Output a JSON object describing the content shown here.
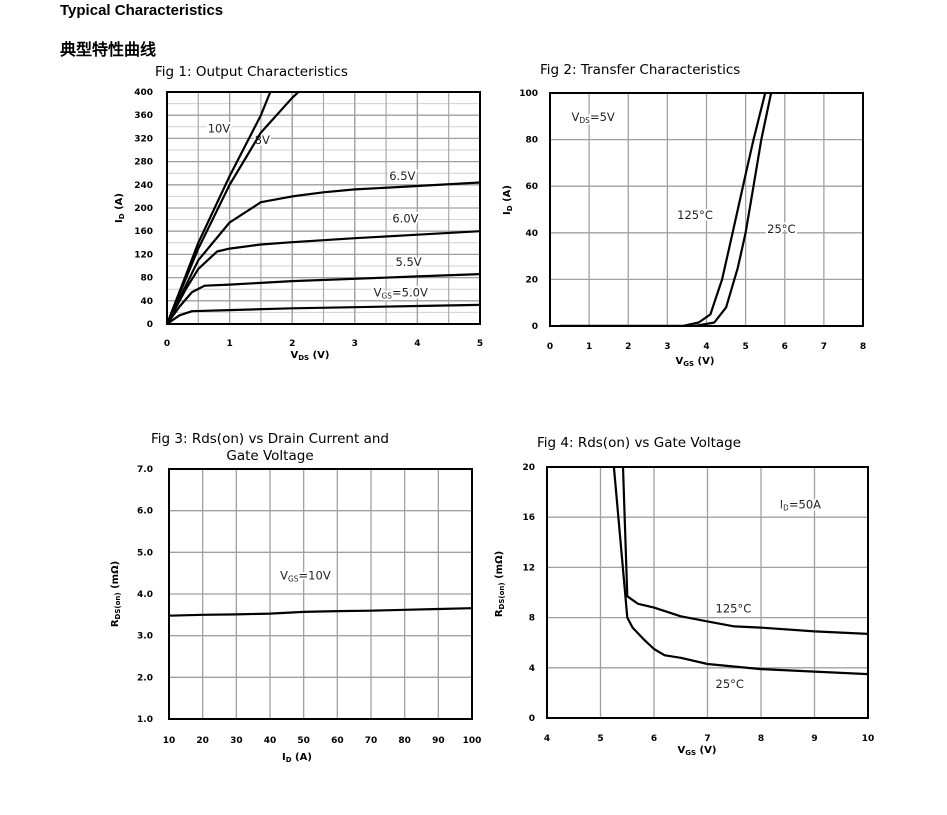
{
  "header": {
    "title": "Typical Characteristics",
    "subtitle": "典型特性曲线"
  },
  "chart_data": [
    {
      "type": "line",
      "title": "Fig 1: Output Characteristics",
      "xlabel": {
        "main": "V",
        "sub": "DS",
        "rest": " (V)"
      },
      "ylabel": {
        "main": "I",
        "sub": "D",
        "rest": " (A)"
      },
      "xlim": [
        0,
        5
      ],
      "ylim": [
        0,
        400
      ],
      "xticks": [
        "0",
        "1",
        "2",
        "3",
        "4",
        "5"
      ],
      "yticks": [
        "0",
        "40",
        "80",
        "120",
        "160",
        "200",
        "240",
        "280",
        "320",
        "360",
        "400"
      ],
      "grid": true,
      "series": [
        {
          "name": "10V",
          "x": [
            0,
            0.25,
            0.5,
            1,
            1.5,
            1.65
          ],
          "y": [
            0,
            70,
            140,
            255,
            360,
            400
          ]
        },
        {
          "name": "8V",
          "x": [
            0,
            0.5,
            1,
            1.5,
            2,
            2.1
          ],
          "y": [
            0,
            130,
            240,
            330,
            390,
            400
          ]
        },
        {
          "name": "6.5V",
          "x": [
            0,
            0.5,
            1,
            1.5,
            2,
            2.5,
            3,
            4,
            5
          ],
          "y": [
            0,
            110,
            175,
            210,
            220,
            227,
            232,
            238,
            244
          ]
        },
        {
          "name": "6.0V",
          "x": [
            0,
            0.3,
            0.5,
            0.8,
            1,
            1.5,
            2,
            3,
            4,
            5
          ],
          "y": [
            0,
            60,
            95,
            125,
            130,
            137,
            141,
            148,
            154,
            160
          ]
        },
        {
          "name": "5.5V",
          "x": [
            0,
            0.2,
            0.4,
            0.6,
            1,
            2,
            3,
            4,
            5
          ],
          "y": [
            0,
            30,
            55,
            66,
            68,
            74,
            78,
            82,
            86
          ]
        },
        {
          "name": "VGS=5.0V",
          "x": [
            0,
            0.2,
            0.4,
            1,
            2,
            3,
            4,
            5
          ],
          "y": [
            0,
            15,
            22,
            24,
            27,
            29,
            31,
            33
          ]
        }
      ],
      "annotations": [
        {
          "main": "10V"
        },
        {
          "main": "8V"
        },
        {
          "main": "6.5V"
        },
        {
          "main": "6.0V"
        },
        {
          "main": "5.5V"
        },
        {
          "main": "V",
          "sub": "GS",
          "rest": "=5.0V"
        }
      ]
    },
    {
      "type": "line",
      "title": "Fig 2: Transfer Characteristics",
      "xlabel": {
        "main": "V",
        "sub": "GS",
        "rest": " (V)"
      },
      "ylabel": {
        "main": "I",
        "sub": "D",
        "rest": " (A)"
      },
      "xlim": [
        0,
        8
      ],
      "ylim": [
        0,
        100
      ],
      "xticks": [
        "0",
        "1",
        "2",
        "3",
        "4",
        "5",
        "6",
        "7",
        "8"
      ],
      "yticks": [
        "0",
        "20",
        "40",
        "60",
        "80",
        "100"
      ],
      "grid": true,
      "series": [
        {
          "name": "125°C",
          "x": [
            0.25,
            3.4,
            3.8,
            4.1,
            4.4,
            4.6,
            4.8,
            5.0,
            5.2,
            5.5
          ],
          "y": [
            0,
            0,
            1.5,
            5,
            20,
            35,
            50,
            65,
            80,
            100
          ]
        },
        {
          "name": "25°C",
          "x": [
            0.25,
            3.7,
            4.2,
            4.5,
            4.8,
            5.0,
            5.2,
            5.4,
            5.65
          ],
          "y": [
            0,
            0,
            1.5,
            8,
            25,
            40,
            60,
            80,
            100
          ]
        }
      ],
      "annotations": [
        {
          "main": "V",
          "sub": "DS",
          "rest": "=5V"
        },
        {
          "main": "125°C"
        },
        {
          "main": "25°C"
        }
      ]
    },
    {
      "type": "line",
      "title": "Fig 3: Rds(on) vs Drain Current and",
      "title2": "Gate Voltage",
      "xlabel": {
        "main": "I",
        "sub": "D",
        "rest": " (A)"
      },
      "ylabel": {
        "main": "R",
        "sub": "DS(on)",
        "rest": " (mΩ)"
      },
      "xlim": [
        10,
        100
      ],
      "ylim": [
        1,
        7
      ],
      "xticks": [
        "10",
        "20",
        "30",
        "40",
        "50",
        "60",
        "70",
        "80",
        "90",
        "100"
      ],
      "yticks": [
        "1.0",
        "2.0",
        "3.0",
        "4.0",
        "5.0",
        "6.0",
        "7.0"
      ],
      "grid": true,
      "series": [
        {
          "name": "VGS=10V",
          "x": [
            10,
            20,
            30,
            40,
            50,
            60,
            70,
            80,
            90,
            100
          ],
          "y": [
            3.48,
            3.5,
            3.51,
            3.53,
            3.57,
            3.59,
            3.6,
            3.62,
            3.64,
            3.66
          ]
        }
      ],
      "annotations": [
        {
          "main": "V",
          "sub": "GS",
          "rest": "=10V"
        }
      ]
    },
    {
      "type": "line",
      "title": "Fig 4: Rds(on) vs Gate Voltage",
      "xlabel": {
        "main": "V",
        "sub": "GS",
        "rest": " (V)"
      },
      "ylabel": {
        "main": "R",
        "sub": "DS(on)",
        "rest": " (mΩ)"
      },
      "xlim": [
        4,
        10
      ],
      "ylim": [
        0,
        20
      ],
      "xticks": [
        "4",
        "5",
        "6",
        "7",
        "8",
        "9",
        "10"
      ],
      "yticks": [
        "0",
        "4",
        "8",
        "12",
        "16",
        "20"
      ],
      "grid": true,
      "series": [
        {
          "name": "125°C",
          "x": [
            5.42,
            5.5,
            5.7,
            6,
            6.5,
            7,
            7.5,
            8,
            9,
            10
          ],
          "y": [
            20,
            9.7,
            9.1,
            8.8,
            8.1,
            7.7,
            7.3,
            7.2,
            6.9,
            6.7
          ]
        },
        {
          "name": "25°C",
          "x": [
            5.25,
            5.5,
            5.6,
            5.8,
            6,
            6.2,
            6.5,
            7,
            8,
            9,
            10
          ],
          "y": [
            20,
            8,
            7.2,
            6.3,
            5.5,
            5,
            4.8,
            4.3,
            3.9,
            3.7,
            3.5
          ]
        }
      ],
      "annotations": [
        {
          "main": "I",
          "sub": "D",
          "rest": "=50A"
        },
        {
          "main": "125°C"
        },
        {
          "main": "25°C"
        }
      ]
    }
  ]
}
